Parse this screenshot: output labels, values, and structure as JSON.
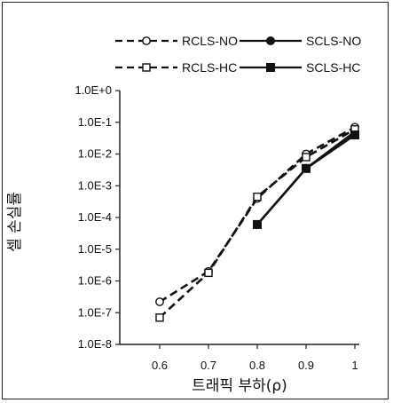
{
  "chart_data": {
    "type": "line",
    "title": "",
    "xlabel": "트래픽 부하(ρ)",
    "ylabel": "셀 손실률",
    "x_ticks": [
      "0.6",
      "0.7",
      "0.8",
      "0.9",
      "1"
    ],
    "y_ticks": [
      "1.0E+0",
      "1.0E-1",
      "1.0E-2",
      "1.0E-3",
      "1.0E-4",
      "1.0E-5",
      "1.0E-6",
      "1.0E-7",
      "1.0E-8"
    ],
    "y_scale": "log",
    "xlim": [
      0.6,
      1.0
    ],
    "ylim": [
      1e-08,
      1
    ],
    "grid": false,
    "legend_position": "top",
    "series": [
      {
        "name": "RCLS-NO",
        "line": "dashed",
        "marker": "open-circle",
        "x": [
          0.6,
          0.7,
          0.8,
          0.9,
          1.0
        ],
        "y": [
          2.2e-07,
          2e-06,
          0.0004,
          0.01,
          0.07
        ]
      },
      {
        "name": "SCLS-NO",
        "line": "solid",
        "marker": "filled-circle",
        "x": [
          0.8,
          0.9,
          1.0
        ],
        "y": [
          6e-05,
          0.0035,
          0.05
        ]
      },
      {
        "name": "RCLS-HC",
        "line": "dashed",
        "marker": "open-square",
        "x": [
          0.6,
          0.7,
          0.8,
          0.9,
          1.0
        ],
        "y": [
          7e-08,
          1.8e-06,
          0.00045,
          0.008,
          0.06
        ]
      },
      {
        "name": "SCLS-HC",
        "line": "solid",
        "marker": "filled-square",
        "x": [
          0.8,
          0.9,
          1.0
        ],
        "y": [
          6e-05,
          0.0035,
          0.04
        ]
      }
    ]
  }
}
